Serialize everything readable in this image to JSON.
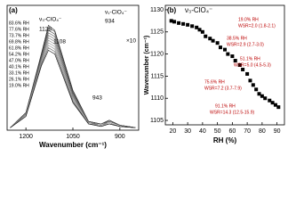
{
  "chart_data": [
    {
      "type": "line",
      "panel_label": "(a)",
      "xlabel": "Wavenumber (cm⁻¹)",
      "x": [
        1250,
        1200,
        1150,
        1128,
        1108,
        1050,
        1000,
        960,
        934,
        900,
        850
      ],
      "xlim": [
        1260,
        840
      ],
      "xticks": [
        1200,
        1050,
        900
      ],
      "ylim": [
        0,
        1
      ],
      "series": [
        {
          "name": "83.6% RH",
          "color": "#222",
          "values": [
            0.02,
            0.14,
            0.62,
            0.84,
            0.8,
            0.32,
            0.07,
            0.05,
            0.08,
            0.04,
            0.02
          ]
        },
        {
          "name": "77.6% RH",
          "color": "#333",
          "values": [
            0.02,
            0.14,
            0.61,
            0.82,
            0.79,
            0.31,
            0.07,
            0.05,
            0.08,
            0.04,
            0.02
          ]
        },
        {
          "name": "73.7% RH",
          "color": "#444",
          "values": [
            0.02,
            0.14,
            0.6,
            0.8,
            0.77,
            0.3,
            0.07,
            0.05,
            0.07,
            0.04,
            0.02
          ]
        },
        {
          "name": "69.8% RH",
          "color": "#555",
          "values": [
            0.02,
            0.13,
            0.59,
            0.78,
            0.75,
            0.29,
            0.06,
            0.05,
            0.07,
            0.04,
            0.02
          ]
        },
        {
          "name": "61.8% RH",
          "color": "#666",
          "values": [
            0.02,
            0.13,
            0.58,
            0.76,
            0.73,
            0.28,
            0.06,
            0.04,
            0.07,
            0.04,
            0.02
          ]
        },
        {
          "name": "54.2% RH",
          "color": "#777",
          "values": [
            0.02,
            0.13,
            0.57,
            0.74,
            0.71,
            0.27,
            0.06,
            0.04,
            0.06,
            0.03,
            0.02
          ]
        },
        {
          "name": "47.0% RH",
          "color": "#888",
          "values": [
            0.02,
            0.12,
            0.56,
            0.72,
            0.69,
            0.26,
            0.06,
            0.04,
            0.06,
            0.03,
            0.02
          ]
        },
        {
          "name": "40.1% RH",
          "color": "#999",
          "values": [
            0.02,
            0.12,
            0.55,
            0.7,
            0.67,
            0.25,
            0.05,
            0.04,
            0.06,
            0.03,
            0.02
          ]
        },
        {
          "name": "33.1% RH",
          "color": "#888",
          "values": [
            0.02,
            0.12,
            0.54,
            0.68,
            0.65,
            0.24,
            0.05,
            0.04,
            0.05,
            0.03,
            0.02
          ]
        },
        {
          "name": "26.1% RH",
          "color": "#555",
          "values": [
            0.02,
            0.11,
            0.53,
            0.66,
            0.63,
            0.23,
            0.05,
            0.03,
            0.05,
            0.03,
            0.02
          ]
        },
        {
          "name": "19.0% RH",
          "color": "#111",
          "values": [
            0.02,
            0.11,
            0.52,
            0.64,
            0.61,
            0.22,
            0.05,
            0.03,
            0.05,
            0.03,
            0.02
          ]
        }
      ],
      "annotations": [
        "ν₃-ClO₄⁻",
        "1128",
        "1108",
        "ν₁-ClO₄⁻",
        "934",
        "×10",
        "943"
      ]
    },
    {
      "type": "scatter",
      "panel_label": "(b)",
      "title": "ν₃-ClO₄⁻",
      "xlabel": "RH (%)",
      "ylabel": "Wavenumber (cm⁻¹)",
      "x": [
        19,
        21,
        24,
        27,
        30,
        33,
        36,
        38,
        40,
        42,
        45,
        47,
        50,
        52,
        55,
        57,
        60,
        62,
        65,
        67,
        70,
        72,
        74,
        76,
        78,
        80,
        82,
        85,
        87,
        89,
        91
      ],
      "values": [
        1127.5,
        1127.3,
        1127,
        1126.8,
        1126.6,
        1126.3,
        1126,
        1125.5,
        1125,
        1124,
        1123.5,
        1123,
        1122.5,
        1121.5,
        1121,
        1120,
        1119.5,
        1118.5,
        1117.5,
        1116.5,
        1115.5,
        1114,
        1113,
        1112,
        1111,
        1110.5,
        1110,
        1109.5,
        1109,
        1108.5,
        1108
      ],
      "color": "#000",
      "xlim": [
        15,
        95
      ],
      "xticks": [
        20,
        30,
        40,
        50,
        60,
        70,
        80,
        90
      ],
      "ylim": [
        1104,
        1131
      ],
      "yticks": [
        1105,
        1110,
        1115,
        1120,
        1125,
        1130
      ],
      "annotations": [
        "19.0% RH",
        "WSR=2.0 (1.8-2.1)",
        "38.5% RH",
        "WSR=2.9 (2.7-3.0)",
        "51.1% RH",
        "WSR=5.0 (4.5-5.3)",
        "75.6% RH",
        "WSR=7.2 (3.7-7.9)",
        "91.1% RH",
        "WSR=14.3 (12.5-15.9)"
      ]
    }
  ]
}
